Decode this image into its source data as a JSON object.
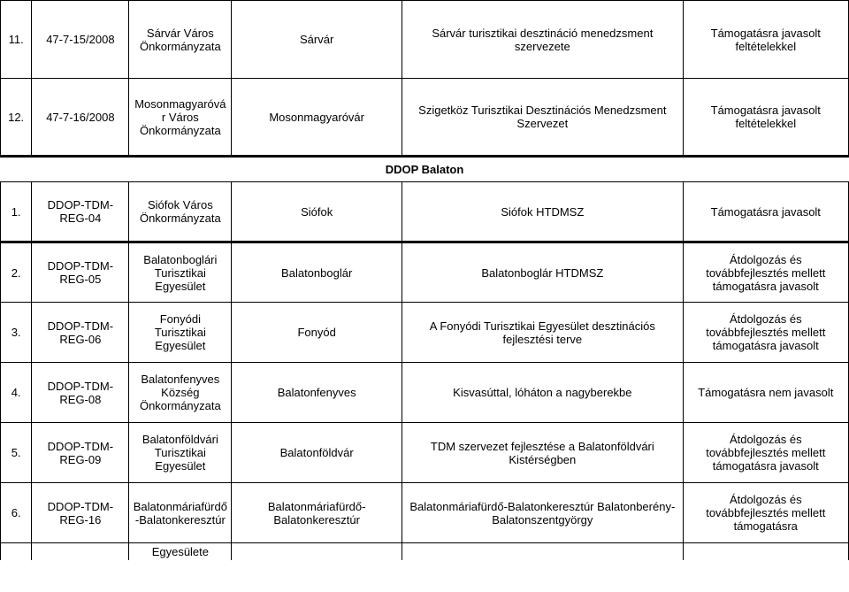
{
  "top_rows": [
    {
      "num": "11.",
      "id": "47-7-15/2008",
      "org": "Sárvár Város Önkormányzata",
      "place": "Sárvár",
      "entity": "Sárvár turisztikai desztináció menedzsment szervezete",
      "status": "Támogatásra javasolt feltételekkel"
    },
    {
      "num": "12.",
      "id": "47-7-16/2008",
      "org": "Mosonmagyaróvár Város Önkormányzata",
      "place": "Mosonmagyaróvár",
      "entity": "Szigetköz Turisztikai Desztinációs Menedzsment Szervezet",
      "status": "Támogatásra javasolt feltételekkel"
    }
  ],
  "section_title": "DDOP Balaton",
  "bottom_rows": [
    {
      "num": "1.",
      "id": "DDOP-TDM-REG-04",
      "org": "Siófok Város Önkormányzata",
      "place": "Siófok",
      "entity": "Siófok HTDMSZ",
      "status": "Támogatásra javasolt"
    },
    {
      "num": "2.",
      "id": "DDOP-TDM-REG-05",
      "org": "Balatonboglári Turisztikai Egyesület",
      "place": "Balatonboglár",
      "entity": "Balatonboglár HTDMSZ",
      "status": "Átdolgozás és továbbfejlesztés mellett támogatásra javasolt"
    },
    {
      "num": "3.",
      "id": "DDOP-TDM-REG-06",
      "org": "Fonyódi Turisztikai Egyesület",
      "place": "Fonyód",
      "entity": "A Fonyódi Turisztikai Egyesület desztinációs fejlesztési terve",
      "status": "Átdolgozás és továbbfejlesztés mellett támogatásra javasolt"
    },
    {
      "num": "4.",
      "id": "DDOP-TDM-REG-08",
      "org": "Balatonfenyves Község Önkormányzata",
      "place": "Balatonfenyves",
      "entity": "Kisvasúttal, lóháton a nagyberekbe",
      "status": "Támogatásra nem javasolt"
    },
    {
      "num": "5.",
      "id": "DDOP-TDM-REG-09",
      "org": "Balatonföldvári Turisztikai Egyesület",
      "place": "Balatonföldvár",
      "entity": "TDM szervezet fejlesztése a Balatonföldvári Kistérségben",
      "status": "Átdolgozás és továbbfejlesztés mellett támogatásra javasolt"
    },
    {
      "num": "6.",
      "id": "DDOP-TDM-REG-16",
      "org": "Balatonmáriafürdő-Balatonkeresztúr",
      "place": "Balatonmáriafürdő-Balatonkeresztúr",
      "entity": "Balatonmáriafürdő-Balatonkeresztúr Balatonberény-Balatonszentgyörgy",
      "status": "Átdolgozás és továbbfejlesztés mellett támogatásra"
    }
  ],
  "trailing_text": "Egyesülete"
}
